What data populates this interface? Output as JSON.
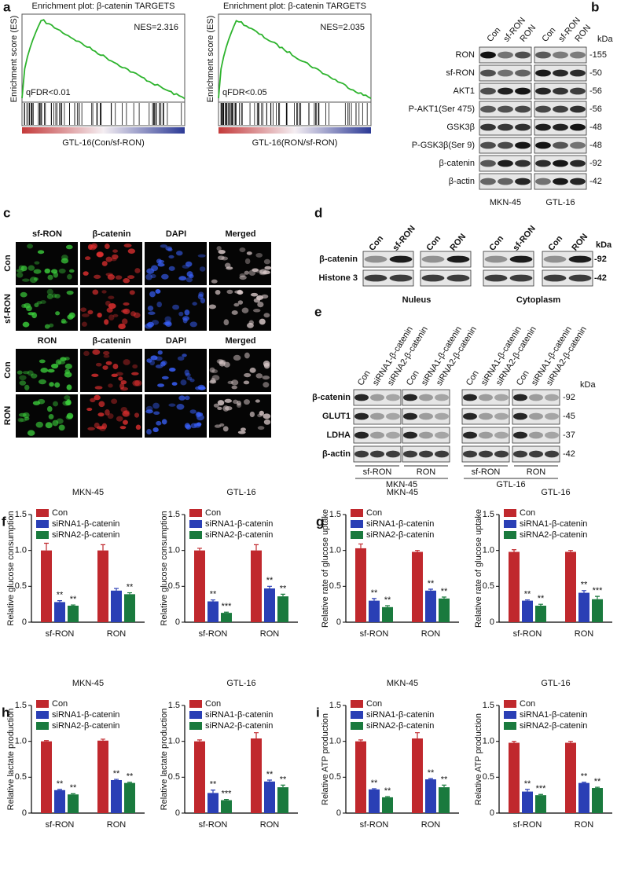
{
  "figure": {
    "a": {
      "label": "a",
      "plots": [
        {
          "title": "Enrichment plot: β-catenin TARGETS",
          "ylabel": "Enrichment score (ES)",
          "nes": "NES=2.316",
          "fdr": "qFDR<0.01",
          "xlabel": "GTL-16(Con/sf-RON)"
        },
        {
          "title": "Enrichment plot: β-catenin TARGETS",
          "ylabel": "Enrichment score (ES)",
          "nes": "NES=2.035",
          "fdr": "qFDR<0.05",
          "xlabel": "GTL-16(RON/sf-RON)"
        }
      ]
    },
    "b": {
      "label": "b",
      "lanes": [
        "Con",
        "sf-RON",
        "RON"
      ],
      "kda": "kDa",
      "rows": [
        {
          "name": "RON",
          "kda": "-155"
        },
        {
          "name": "sf-RON",
          "kda": "-50"
        },
        {
          "name": "AKT1",
          "kda": "-56"
        },
        {
          "name": "P-AKT1(Ser 475)",
          "kda": "-56"
        },
        {
          "name": "GSK3β",
          "kda": "-48"
        },
        {
          "name": "P-GSK3β(Ser 9)",
          "kda": "-48"
        },
        {
          "name": "β-catenin",
          "kda": "-92"
        },
        {
          "name": "β-actin",
          "kda": "-42"
        }
      ],
      "cells": [
        "MKN-45",
        "GTL-16"
      ]
    },
    "c": {
      "label": "c",
      "blocks": [
        {
          "columns": [
            "sf-RON",
            "β-catenin",
            "DAPI",
            "Merged"
          ],
          "rows": [
            "Con",
            "sf-RON"
          ]
        },
        {
          "columns": [
            "RON",
            "β-catenin",
            "DAPI",
            "Merged"
          ],
          "rows": [
            "Con",
            "RON"
          ]
        }
      ]
    },
    "d": {
      "label": "d",
      "lanes": [
        [
          "Con",
          "sf-RON"
        ],
        [
          "Con",
          "RON"
        ],
        [
          "Con",
          "sf-RON"
        ],
        [
          "Con",
          "RON"
        ]
      ],
      "kda": "kDa",
      "rows": [
        {
          "name": "β-catenin",
          "kda": "-92"
        },
        {
          "name": "Histone 3",
          "kda": "-42"
        }
      ],
      "fractions": [
        "Nuleus",
        "Cytoplasm"
      ]
    },
    "e": {
      "label": "e",
      "lanes": [
        "Con",
        "siRNA1-β-catenin",
        "siRNA2-β-catenin"
      ],
      "kda": "kDa",
      "rows": [
        {
          "name": "β-catenin",
          "kda": "-92"
        },
        {
          "name": "GLUT1",
          "kda": "-45"
        },
        {
          "name": "LDHA",
          "kda": "-37"
        },
        {
          "name": "β-actin",
          "kda": "-42"
        }
      ],
      "groups": [
        "sf-RON",
        "RON",
        "sf-RON",
        "RON"
      ],
      "cells": [
        "MKN-45",
        "GTL-16"
      ]
    }
  },
  "chart_data": [
    {
      "type": "bar",
      "panel_label": "f",
      "title": "MKN-45",
      "ylabel": "Relative glucose consumption",
      "categories": [
        "sf-RON",
        "RON"
      ],
      "ylim": [
        0,
        1.5
      ],
      "yticks": [
        0,
        0.5,
        {
          "value": 1,
          "label": "1.0"
        },
        1.5
      ],
      "series": [
        {
          "name": "Con",
          "color": "#c0282d",
          "values": [
            1.0,
            1.0
          ],
          "errors": [
            0.1,
            0.08
          ],
          "stars": [
            null,
            null
          ]
        },
        {
          "name": "siRNA1-β-catenin",
          "color": "#2a3fb5",
          "values": [
            0.28,
            0.44
          ],
          "errors": [
            0.02,
            0.03
          ],
          "stars": [
            "**",
            null
          ]
        },
        {
          "name": "siRNA2-β-catenin",
          "color": "#1a7a3e",
          "values": [
            0.23,
            0.39
          ],
          "errors": [
            0.01,
            0.02
          ],
          "stars": [
            "**",
            "**"
          ]
        }
      ]
    },
    {
      "type": "bar",
      "title": "GTL-16",
      "ylabel": "Relative glucose consumption",
      "categories": [
        "sf-RON",
        "RON"
      ],
      "ylim": [
        0,
        1.5
      ],
      "yticks": [
        0,
        0.5,
        {
          "value": 1,
          "label": "1.0"
        },
        1.5
      ],
      "series": [
        {
          "name": "Con",
          "color": "#c0282d",
          "values": [
            1.0,
            1.0
          ],
          "errors": [
            0.03,
            0.08
          ],
          "stars": [
            null,
            null
          ]
        },
        {
          "name": "siRNA1-β-catenin",
          "color": "#2a3fb5",
          "values": [
            0.29,
            0.47
          ],
          "errors": [
            0.02,
            0.03
          ],
          "stars": [
            "**",
            "**"
          ]
        },
        {
          "name": "siRNA2-β-catenin",
          "color": "#1a7a3e",
          "values": [
            0.13,
            0.36
          ],
          "errors": [
            0.01,
            0.03
          ],
          "stars": [
            "***",
            "**"
          ]
        }
      ]
    },
    {
      "type": "bar",
      "panel_label": "g",
      "title": "MKN-45",
      "ylabel": "Relative rate of glucose uptake",
      "categories": [
        "sf-RON",
        "RON"
      ],
      "ylim": [
        0,
        1.5
      ],
      "yticks": [
        0,
        0.5,
        {
          "value": 1,
          "label": "1.0"
        },
        1.5
      ],
      "series": [
        {
          "name": "Con",
          "color": "#c0282d",
          "values": [
            1.03,
            0.98
          ],
          "errors": [
            0.06,
            0.02
          ],
          "stars": [
            null,
            null
          ]
        },
        {
          "name": "siRNA1-β-catenin",
          "color": "#2a3fb5",
          "values": [
            0.3,
            0.44
          ],
          "errors": [
            0.03,
            0.02
          ],
          "stars": [
            "**",
            "**"
          ]
        },
        {
          "name": "siRNA2-β-catenin",
          "color": "#1a7a3e",
          "values": [
            0.21,
            0.33
          ],
          "errors": [
            0.02,
            0.02
          ],
          "stars": [
            "**",
            "**"
          ]
        }
      ]
    },
    {
      "type": "bar",
      "title": "GTL-16",
      "ylabel": "Relative rate of glucose uptake",
      "categories": [
        "sf-RON",
        "RON"
      ],
      "ylim": [
        0,
        1.5
      ],
      "yticks": [
        0,
        0.5,
        {
          "value": 1,
          "label": "1.0"
        },
        1.5
      ],
      "series": [
        {
          "name": "Con",
          "color": "#c0282d",
          "values": [
            0.98,
            0.98
          ],
          "errors": [
            0.03,
            0.02
          ],
          "stars": [
            null,
            null
          ]
        },
        {
          "name": "siRNA1-β-catenin",
          "color": "#2a3fb5",
          "values": [
            0.3,
            0.41
          ],
          "errors": [
            0.01,
            0.03
          ],
          "stars": [
            "**",
            "**"
          ]
        },
        {
          "name": "siRNA2-β-catenin",
          "color": "#1a7a3e",
          "values": [
            0.23,
            0.32
          ],
          "errors": [
            0.02,
            0.04
          ],
          "stars": [
            "**",
            "***"
          ]
        }
      ]
    },
    {
      "type": "bar",
      "panel_label": "h",
      "title": "MKN-45",
      "ylabel": "Relative lactate production",
      "categories": [
        "sf-RON",
        "RON"
      ],
      "ylim": [
        0,
        1.5
      ],
      "yticks": [
        0,
        0.5,
        {
          "value": 1,
          "label": "1.0"
        },
        1.5
      ],
      "series": [
        {
          "name": "Con",
          "color": "#c0282d",
          "values": [
            1.0,
            1.01
          ],
          "errors": [
            0.01,
            0.02
          ],
          "stars": [
            null,
            null
          ]
        },
        {
          "name": "siRNA1-β-catenin",
          "color": "#2a3fb5",
          "values": [
            0.32,
            0.46
          ],
          "errors": [
            0.01,
            0.01
          ],
          "stars": [
            "**",
            "**"
          ]
        },
        {
          "name": "siRNA2-β-catenin",
          "color": "#1a7a3e",
          "values": [
            0.26,
            0.42
          ],
          "errors": [
            0.01,
            0.01
          ],
          "stars": [
            "**",
            "**"
          ]
        }
      ]
    },
    {
      "type": "bar",
      "title": "GTL-16",
      "ylabel": "Relative lactate production",
      "categories": [
        "sf-RON",
        "RON"
      ],
      "ylim": [
        0,
        1.5
      ],
      "yticks": [
        0,
        0.5,
        {
          "value": 1,
          "label": "1.0"
        },
        1.5
      ],
      "series": [
        {
          "name": "Con",
          "color": "#c0282d",
          "values": [
            1.0,
            1.04
          ],
          "errors": [
            0.02,
            0.08
          ],
          "stars": [
            null,
            null
          ]
        },
        {
          "name": "siRNA1-β-catenin",
          "color": "#2a3fb5",
          "values": [
            0.28,
            0.44
          ],
          "errors": [
            0.04,
            0.02
          ],
          "stars": [
            "**",
            "**"
          ]
        },
        {
          "name": "siRNA2-β-catenin",
          "color": "#1a7a3e",
          "values": [
            0.18,
            0.36
          ],
          "errors": [
            0.01,
            0.03
          ],
          "stars": [
            "***",
            "**"
          ]
        }
      ]
    },
    {
      "type": "bar",
      "panel_label": "i",
      "title": "MKN-45",
      "ylabel": "Relative ATP production",
      "categories": [
        "sf-RON",
        "RON"
      ],
      "ylim": [
        0,
        1.5
      ],
      "yticks": [
        0,
        0.5,
        {
          "value": 1,
          "label": "1.0"
        },
        1.5
      ],
      "series": [
        {
          "name": "Con",
          "color": "#c0282d",
          "values": [
            1.0,
            1.04
          ],
          "errors": [
            0.02,
            0.08
          ],
          "stars": [
            null,
            null
          ]
        },
        {
          "name": "siRNA1-β-catenin",
          "color": "#2a3fb5",
          "values": [
            0.33,
            0.47
          ],
          "errors": [
            0.01,
            0.01
          ],
          "stars": [
            "**",
            "**"
          ]
        },
        {
          "name": "siRNA2-β-catenin",
          "color": "#1a7a3e",
          "values": [
            0.22,
            0.36
          ],
          "errors": [
            0.01,
            0.03
          ],
          "stars": [
            "**",
            "**"
          ]
        }
      ]
    },
    {
      "type": "bar",
      "title": "GTL-16",
      "ylabel": "Relative ATP production",
      "categories": [
        "sf-RON",
        "RON"
      ],
      "ylim": [
        0,
        1.5
      ],
      "yticks": [
        0,
        0.5,
        {
          "value": 1,
          "label": "1.0"
        },
        1.5
      ],
      "series": [
        {
          "name": "Con",
          "color": "#c0282d",
          "values": [
            0.98,
            0.98
          ],
          "errors": [
            0.02,
            0.02
          ],
          "stars": [
            null,
            null
          ]
        },
        {
          "name": "siRNA1-β-catenin",
          "color": "#2a3fb5",
          "values": [
            0.3,
            0.42
          ],
          "errors": [
            0.03,
            0.01
          ],
          "stars": [
            "**",
            "**"
          ]
        },
        {
          "name": "siRNA2-β-catenin",
          "color": "#1a7a3e",
          "values": [
            0.25,
            0.35
          ],
          "errors": [
            0.01,
            0.01
          ],
          "stars": [
            "***",
            "**"
          ]
        }
      ]
    }
  ]
}
